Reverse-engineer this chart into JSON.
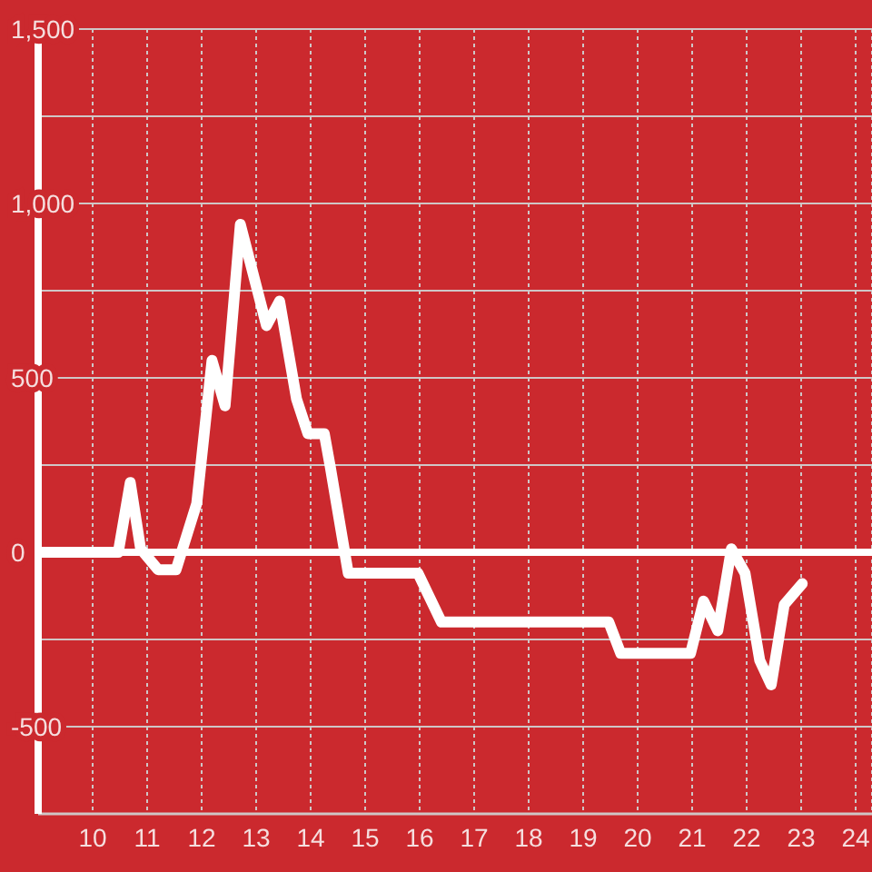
{
  "chart_data": {
    "type": "line",
    "x": [
      9,
      10.47,
      10.69,
      10.88,
      11.2,
      11.53,
      11.91,
      12.19,
      12.43,
      12.71,
      13.19,
      13.43,
      13.74,
      13.95,
      14.25,
      14.36,
      14.69,
      15.97,
      16.4,
      19.47,
      19.69,
      20.97,
      21.21,
      21.47,
      21.72,
      21.97,
      22.24,
      22.45,
      22.69,
      23.02
    ],
    "values": [
      0,
      0,
      200,
      10,
      -50,
      -50,
      140,
      550,
      420,
      940,
      650,
      720,
      440,
      340,
      340,
      245,
      -60,
      -60,
      -200,
      -200,
      -290,
      -290,
      -140,
      -225,
      10,
      -60,
      -310,
      -380,
      -150,
      -90
    ],
    "color": "#ffffff",
    "xlim": [
      9,
      24.3
    ],
    "xticks": [
      10,
      11,
      12,
      13,
      14,
      15,
      16,
      17,
      18,
      19,
      20,
      21,
      22,
      23,
      24
    ],
    "ylim": [
      -750,
      1500
    ],
    "yticks": [
      -500,
      {
        "value": -250,
        "label": null
      },
      0,
      {
        "value": 250,
        "label": null
      },
      500,
      {
        "value": 750,
        "label": null
      },
      {
        "value": 1000,
        "label": "1,000"
      },
      {
        "value": 1250,
        "label": null
      },
      {
        "value": 1500,
        "label": "1,500"
      }
    ],
    "grid": true,
    "ref_lines": [
      {
        "axis": "y",
        "value": 0,
        "color": "#ffffff"
      }
    ]
  }
}
